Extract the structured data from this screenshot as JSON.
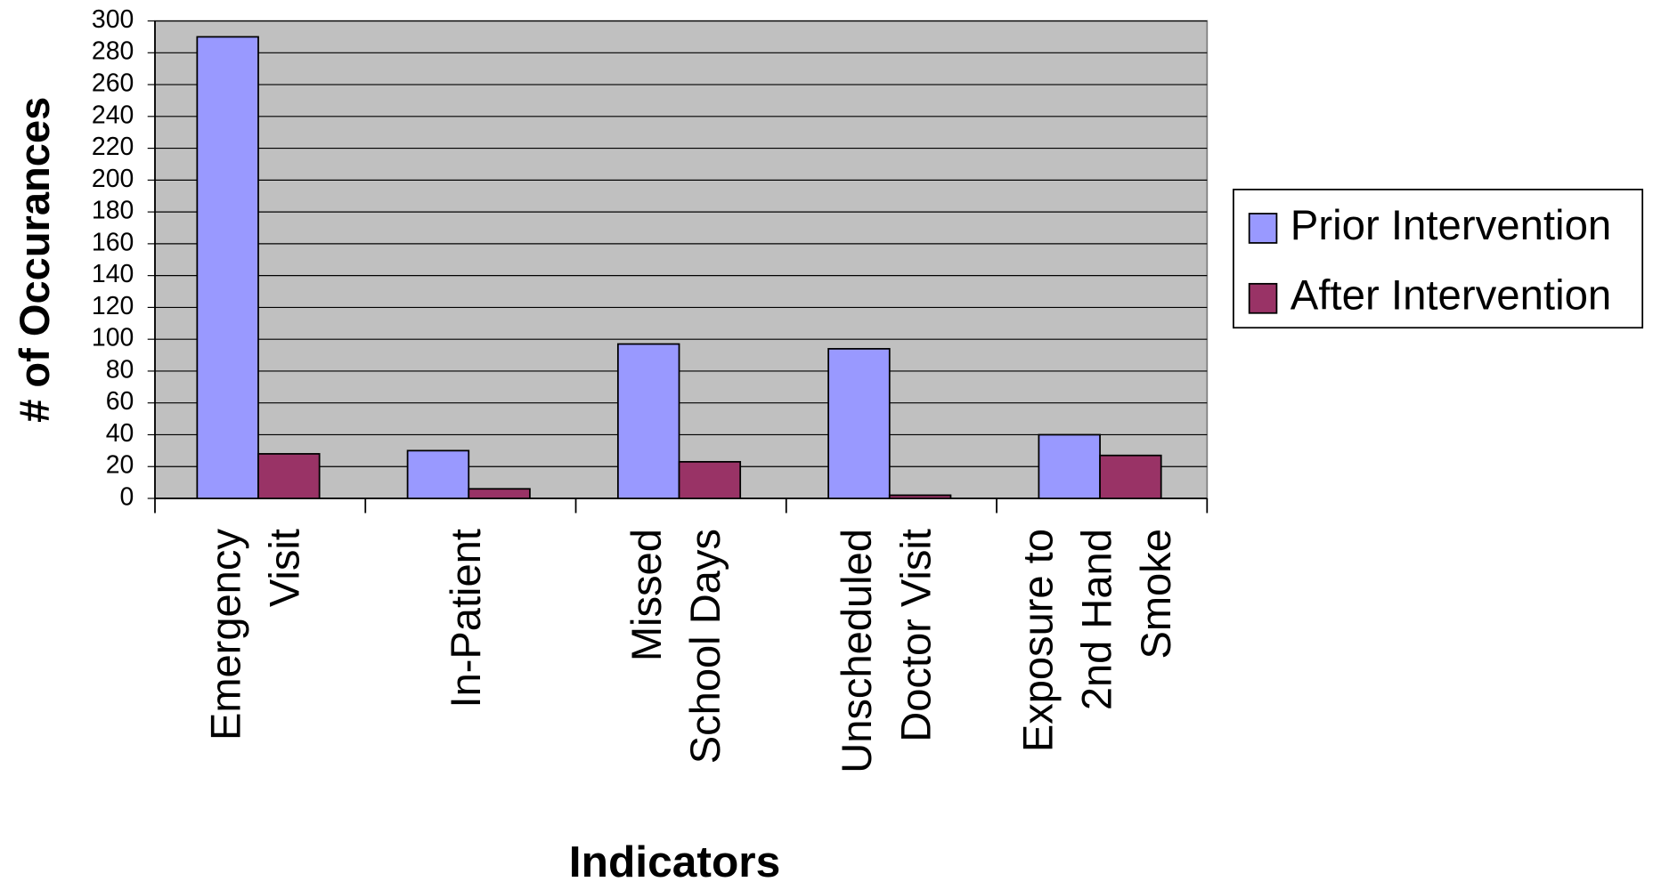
{
  "chart_data": {
    "type": "bar",
    "x_label": "Indicators",
    "y_label": "# of Occurances",
    "categories": [
      [
        "Emergency",
        "Visit"
      ],
      [
        "In-Patient"
      ],
      [
        "Missed",
        "School Days"
      ],
      [
        "Unscheduled",
        "Doctor Visit"
      ],
      [
        "Exposure to",
        "2nd Hand",
        "Smoke"
      ]
    ],
    "series": [
      {
        "name": "Prior Intervention",
        "color": "#9999ff",
        "values": [
          290,
          30,
          97,
          94,
          40
        ]
      },
      {
        "name": "After Intervention",
        "color": "#993366",
        "values": [
          28,
          6,
          23,
          2,
          27
        ]
      }
    ],
    "ylim": [
      0,
      300
    ],
    "yticks": [
      0,
      20,
      40,
      60,
      80,
      100,
      120,
      140,
      160,
      180,
      200,
      220,
      240,
      260,
      280,
      300
    ],
    "grid": true,
    "plot_background": "#c0c0c0",
    "legend": "right"
  }
}
